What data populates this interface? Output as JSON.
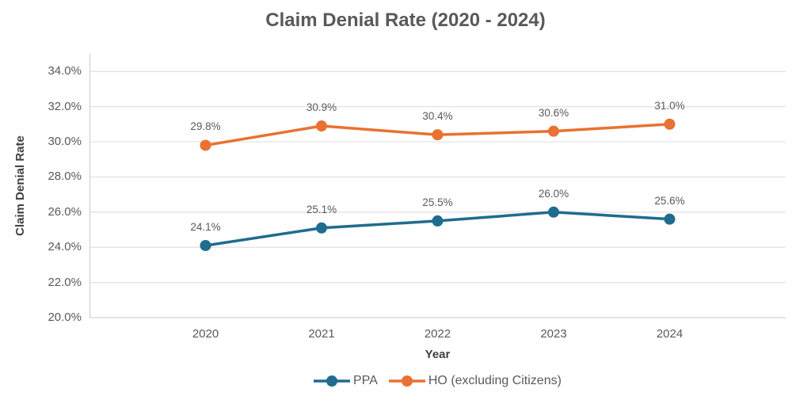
{
  "chart_data": {
    "type": "line",
    "title": "Claim Denial Rate (2020 - 2024)",
    "xlabel": "Year",
    "ylabel": "Claim Denial Rate",
    "categories": [
      "2020",
      "2021",
      "2022",
      "2023",
      "2024"
    ],
    "series": [
      {
        "name": "PPA",
        "color": "#1F6C8F",
        "values": [
          24.1,
          25.1,
          25.5,
          26.0,
          25.6
        ],
        "labels": [
          "24.1%",
          "25.1%",
          "25.5%",
          "26.0%",
          "25.6%"
        ]
      },
      {
        "name": "HO (excluding Citizens)",
        "color": "#E97132",
        "values": [
          29.8,
          30.9,
          30.4,
          30.6,
          31.0
        ],
        "labels": [
          "29.8%",
          "30.9%",
          "30.4%",
          "30.6%",
          "31.0%"
        ]
      }
    ],
    "axis": {
      "ymin": 20,
      "ymax": 35,
      "ytick_values": [
        20,
        22,
        24,
        26,
        28,
        30,
        32,
        34
      ],
      "ytick_labels": [
        "20.0%",
        "22.0%",
        "24.0%",
        "26.0%",
        "28.0%",
        "30.0%",
        "32.0%",
        "34.0%"
      ]
    },
    "grid": true,
    "legend_position": "bottom",
    "style": {
      "grid_color": "#E3E3E3",
      "axis_line_color": "#D2D2D2",
      "line_width": 3.5,
      "marker_radius": 7
    }
  }
}
